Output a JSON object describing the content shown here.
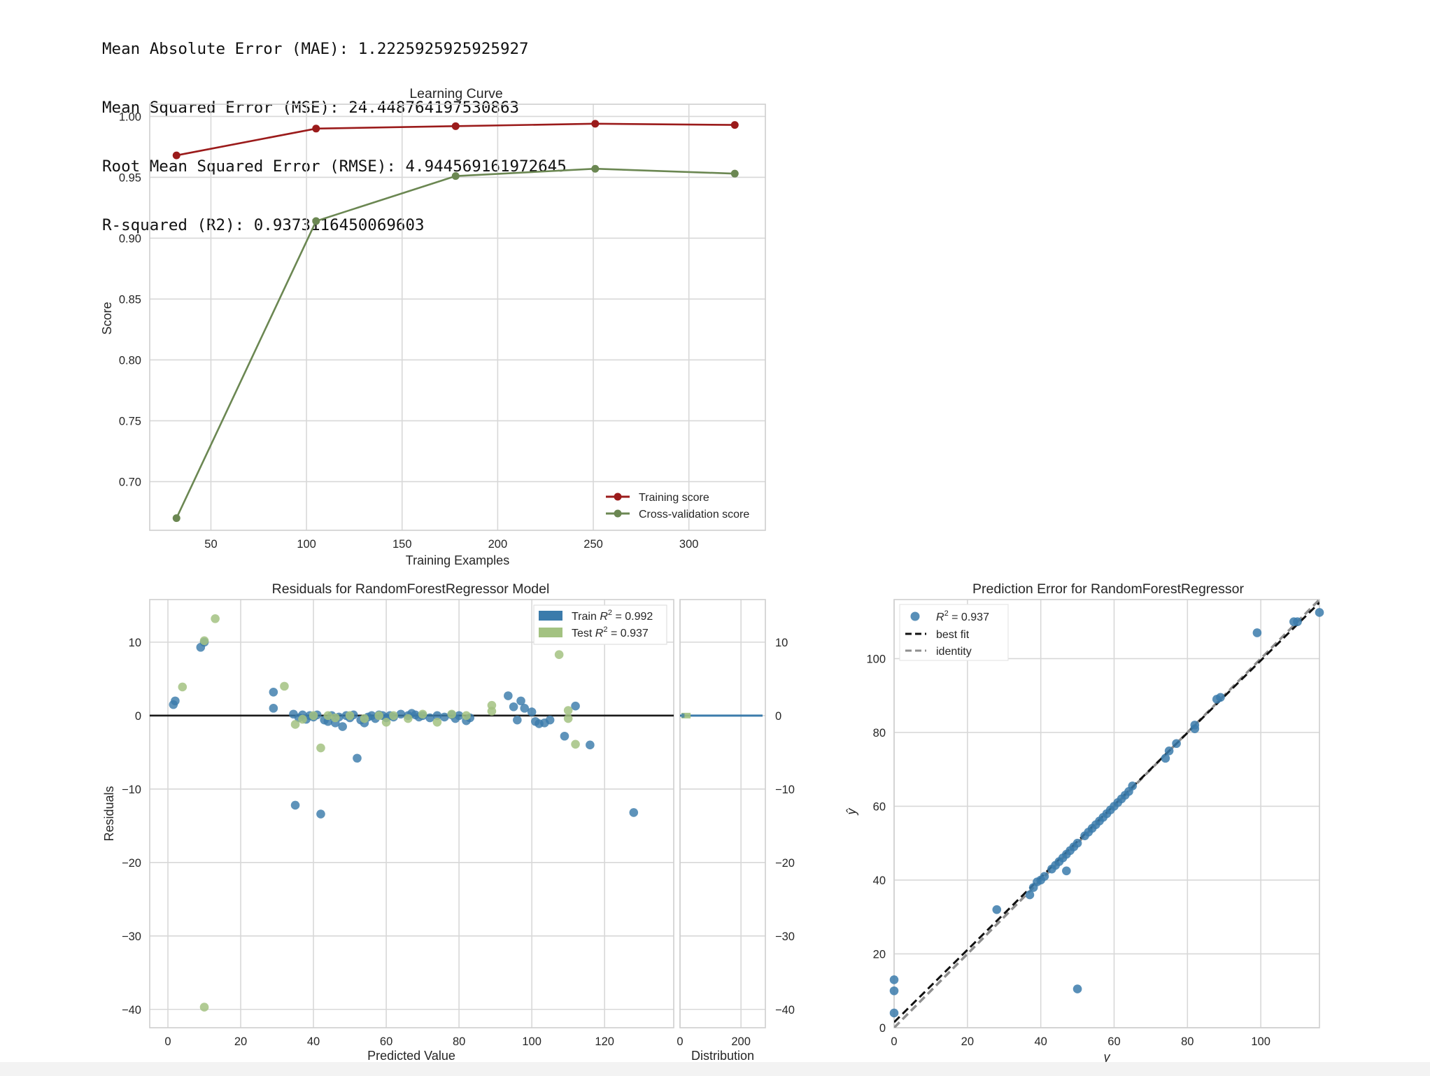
{
  "metrics": [
    "Mean Absolute Error (MAE): 1.2225925925925927",
    "Mean Squared Error (MSE): 24.448764197530863",
    "Root Mean Squared Error (RMSE): 4.944569161972645",
    "R-squared (R2): 0.9373116450069603"
  ],
  "colors": {
    "train": "#9b1b1b",
    "cv": "#6b8752",
    "blue": "#3b7bab",
    "green": "#a3c281",
    "zero_line": "#1a1a1a"
  },
  "chart_data": [
    {
      "type": "line",
      "title": "Learning Curve",
      "xlabel": "Training Examples",
      "ylabel": "Score",
      "xlim": [
        18,
        340
      ],
      "ylim": [
        0.66,
        1.01
      ],
      "xticks": [
        50,
        100,
        150,
        200,
        250,
        300
      ],
      "yticks": [
        0.7,
        0.75,
        0.8,
        0.85,
        0.9,
        0.95,
        1.0
      ],
      "x": [
        32,
        105,
        178,
        251,
        324
      ],
      "series": [
        {
          "name": "Training score",
          "values": [
            0.968,
            0.99,
            0.992,
            0.994,
            0.993
          ]
        },
        {
          "name": "Cross-validation score",
          "values": [
            0.67,
            0.914,
            0.951,
            0.957,
            0.953
          ]
        }
      ],
      "legend": "lower-right"
    },
    {
      "type": "scatter",
      "title": "Residuals for RandomForestRegressor Model",
      "xlabel": "Predicted Value",
      "ylabel": "Residuals",
      "xlim": [
        -5,
        139
      ],
      "ylim": [
        -42.5,
        15.8
      ],
      "xticks": [
        0,
        20,
        40,
        60,
        80,
        100,
        120
      ],
      "yticks": [
        -40,
        -30,
        -20,
        -10,
        0,
        10
      ],
      "legend_entries": [
        "Train",
        "Test"
      ],
      "legend_r2": [
        "= 0.992",
        "= 0.937"
      ],
      "train_points": [
        [
          1.5,
          1.5
        ],
        [
          2,
          2
        ],
        [
          9,
          9.3
        ],
        [
          10,
          10
        ],
        [
          29,
          1
        ],
        [
          29,
          3.2
        ],
        [
          34.5,
          0.2
        ],
        [
          35,
          -12.2
        ],
        [
          36,
          -0.3
        ],
        [
          37,
          0.1
        ],
        [
          38,
          -0.5
        ],
        [
          39,
          0
        ],
        [
          40,
          -0.2
        ],
        [
          41,
          0.1
        ],
        [
          42,
          -13.4
        ],
        [
          43,
          -0.6
        ],
        [
          44,
          -0.8
        ],
        [
          45,
          0
        ],
        [
          46,
          -1
        ],
        [
          47,
          -0.2
        ],
        [
          48,
          -1.5
        ],
        [
          49,
          0
        ],
        [
          50,
          -0.3
        ],
        [
          51,
          0.1
        ],
        [
          52,
          -5.8
        ],
        [
          53,
          -0.6
        ],
        [
          54,
          -1
        ],
        [
          55,
          -0.2
        ],
        [
          56,
          0
        ],
        [
          57,
          -0.4
        ],
        [
          58,
          0.1
        ],
        [
          59,
          0
        ],
        [
          60,
          -0.3
        ],
        [
          61,
          0
        ],
        [
          62,
          -0.2
        ],
        [
          64,
          0.2
        ],
        [
          66,
          0
        ],
        [
          67,
          0.3
        ],
        [
          68,
          0.1
        ],
        [
          69,
          -0.2
        ],
        [
          70,
          0
        ],
        [
          72,
          -0.3
        ],
        [
          74,
          0
        ],
        [
          76,
          -0.2
        ],
        [
          78,
          0.1
        ],
        [
          79,
          -0.4
        ],
        [
          80,
          0
        ],
        [
          82,
          -0.7
        ],
        [
          83,
          -0.3
        ],
        [
          93.5,
          2.7
        ],
        [
          95,
          1.2
        ],
        [
          96,
          -0.6
        ],
        [
          97,
          2
        ],
        [
          98,
          1
        ],
        [
          100,
          0.5
        ],
        [
          101,
          -0.8
        ],
        [
          102,
          -1.1
        ],
        [
          103.5,
          -1
        ],
        [
          105,
          -0.6
        ],
        [
          109,
          -2.8
        ],
        [
          112,
          1.3
        ],
        [
          116,
          -4
        ],
        [
          128,
          -13.2
        ]
      ],
      "test_points": [
        [
          4,
          3.9
        ],
        [
          10,
          10.2
        ],
        [
          13,
          13.2
        ],
        [
          32,
          4
        ],
        [
          35,
          -1.2
        ],
        [
          37,
          -0.5
        ],
        [
          40,
          0
        ],
        [
          42,
          -4.4
        ],
        [
          44,
          0
        ],
        [
          46,
          -0.3
        ],
        [
          50,
          0
        ],
        [
          54,
          -0.4
        ],
        [
          58,
          0
        ],
        [
          60,
          -0.9
        ],
        [
          62,
          0
        ],
        [
          66,
          -0.4
        ],
        [
          70,
          0.2
        ],
        [
          74,
          -0.9
        ],
        [
          78,
          0.2
        ],
        [
          82,
          0
        ],
        [
          89,
          1.4
        ],
        [
          89,
          0.6
        ],
        [
          107.5,
          8.3
        ],
        [
          110,
          0.7
        ],
        [
          110,
          -0.4
        ],
        [
          112,
          -3.9
        ],
        [
          10,
          -39.7
        ]
      ]
    },
    {
      "type": "histogram",
      "title": "",
      "xlabel": "Distribution",
      "xlim": [
        0,
        280
      ],
      "xticks": [
        0,
        200
      ],
      "yticks": [
        -40,
        -30,
        -20,
        -10,
        0,
        10
      ],
      "note": "residual distribution, concentrated at 0"
    },
    {
      "type": "scatter",
      "title": "Prediction Error for RandomForestRegressor",
      "xlabel": "y",
      "ylabel": "ŷ",
      "xlim": [
        0,
        116
      ],
      "ylim": [
        0,
        116
      ],
      "xticks": [
        0,
        20,
        40,
        60,
        80,
        100
      ],
      "yticks": [
        0,
        20,
        40,
        60,
        80,
        100
      ],
      "legend_entries": [
        "= 0.937",
        "best fit",
        "identity"
      ],
      "best_fit": {
        "slope": 0.98,
        "intercept": 1.5
      },
      "points": [
        [
          0,
          13
        ],
        [
          0,
          10
        ],
        [
          0,
          4
        ],
        [
          28,
          32
        ],
        [
          37,
          36
        ],
        [
          38,
          38
        ],
        [
          39,
          39.5
        ],
        [
          40,
          40
        ],
        [
          41,
          41
        ],
        [
          43,
          43
        ],
        [
          44,
          44
        ],
        [
          45,
          45
        ],
        [
          46,
          46
        ],
        [
          47,
          42.5
        ],
        [
          47,
          47
        ],
        [
          48,
          48
        ],
        [
          49,
          49
        ],
        [
          50,
          10.5
        ],
        [
          50,
          50
        ],
        [
          52,
          52
        ],
        [
          53,
          53
        ],
        [
          54,
          54
        ],
        [
          55,
          55
        ],
        [
          56,
          56
        ],
        [
          57,
          57
        ],
        [
          58,
          58
        ],
        [
          59,
          59
        ],
        [
          60,
          60
        ],
        [
          61,
          61
        ],
        [
          62,
          62
        ],
        [
          63,
          63
        ],
        [
          64,
          64
        ],
        [
          65,
          65.5
        ],
        [
          74,
          73
        ],
        [
          75,
          75
        ],
        [
          77,
          77
        ],
        [
          82,
          81
        ],
        [
          82,
          82
        ],
        [
          88,
          89
        ],
        [
          89,
          89.5
        ],
        [
          99,
          107
        ],
        [
          109,
          110
        ],
        [
          110,
          110
        ],
        [
          116,
          112.5
        ]
      ]
    }
  ]
}
